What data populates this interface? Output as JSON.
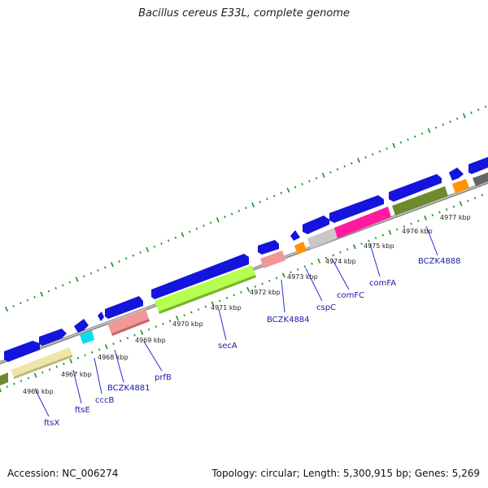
{
  "title": "Bacillus cereus E33L, complete genome",
  "footer": {
    "accession": "Accession: NC_006274",
    "topology": "Topology: circular; Length: 5,300,915 bp; Genes: 5,269"
  },
  "colors": {
    "backbone": "#8c8c8c",
    "forward_cds": "#1414dc",
    "tick": "#1e8c1e",
    "label_line": "#2a2ad0"
  },
  "kbp_labels": [
    "4966 kbp",
    "4967 kbp",
    "4968 kbp",
    "4969 kbp",
    "4970 kbp",
    "4971 kbp",
    "4972 kbp",
    "4973 kbp",
    "4974 kbp",
    "4975 kbp",
    "4976 kbp",
    "4977 kbp"
  ],
  "gene_labels": [
    "ftsX",
    "ftsE",
    "cccB",
    "BCZK4881",
    "prfB",
    "secA",
    "BCZK4884",
    "cspC",
    "comFC",
    "comFA",
    "BCZK4888"
  ]
}
